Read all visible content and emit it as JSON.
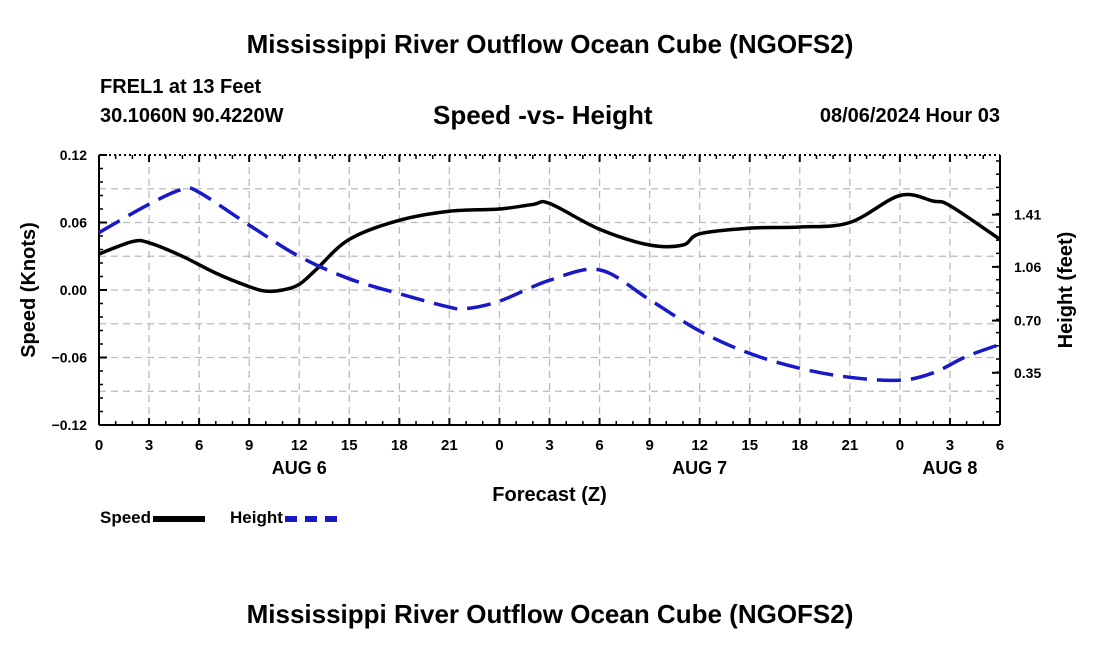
{
  "page": {
    "title": "Mississippi River Outflow Ocean Cube (NGOFS2)",
    "footer_title": "Mississippi River Outflow Ocean Cube (NGOFS2)"
  },
  "header": {
    "station": "FREL1 at 13 Feet",
    "coords": "30.1060N  90.4220W",
    "date": "08/06/2024 Hour 03"
  },
  "legend": {
    "speed": "Speed",
    "height": "Height"
  },
  "colors": {
    "speed": "#000000",
    "height": "#1919c8",
    "grid": "#bbbbbb"
  },
  "chart_data": {
    "type": "line",
    "title": "Speed -vs- Height",
    "xlabel": "Forecast (Z)",
    "ylabel_left": "Speed (Knots)",
    "ylabel_right": "Height (feet)",
    "x_range": [
      0,
      54
    ],
    "x_ticks": [
      0,
      3,
      6,
      9,
      12,
      15,
      18,
      21,
      24,
      27,
      30,
      33,
      36,
      39,
      42,
      45,
      48,
      51,
      54
    ],
    "x_tick_labels": [
      "0",
      "3",
      "6",
      "9",
      "12",
      "15",
      "18",
      "21",
      "0",
      "3",
      "6",
      "9",
      "12",
      "15",
      "18",
      "21",
      "0",
      "3",
      "6"
    ],
    "date_labels": [
      {
        "x": 12,
        "text": "AUG 6"
      },
      {
        "x": 36,
        "text": "AUG 7"
      },
      {
        "x": 51,
        "text": "AUG 8"
      }
    ],
    "y_left": {
      "range": [
        -0.12,
        0.12
      ],
      "ticks": [
        -0.12,
        -0.06,
        0.0,
        0.06,
        0.12
      ],
      "labels": [
        "−0.12",
        "−0.06",
        "0.00",
        "0.06",
        "0.12"
      ]
    },
    "y_right": {
      "range": [
        0.0,
        1.81
      ],
      "ticks": [
        0.35,
        0.7,
        1.06,
        1.41
      ],
      "labels": [
        "0.35",
        "0.70",
        "1.06",
        "1.41"
      ]
    },
    "grid": true,
    "series": [
      {
        "name": "Speed",
        "axis": "left",
        "style": "solid",
        "x": [
          0,
          2,
          3,
          5,
          7,
          9,
          10,
          11,
          12,
          13,
          15,
          18,
          21,
          24,
          26,
          27,
          30,
          33,
          35,
          36,
          39,
          42,
          45,
          48,
          50,
          51,
          54
        ],
        "values": [
          0.032,
          0.043,
          0.042,
          0.03,
          0.015,
          0.003,
          -0.001,
          0.0,
          0.005,
          0.018,
          0.045,
          0.062,
          0.07,
          0.072,
          0.076,
          0.077,
          0.054,
          0.04,
          0.04,
          0.05,
          0.055,
          0.056,
          0.06,
          0.084,
          0.079,
          0.075,
          0.045
        ]
      },
      {
        "name": "Height",
        "axis": "right",
        "style": "dashed",
        "x": [
          0,
          3,
          5,
          6,
          9,
          12,
          15,
          18,
          21,
          22,
          24,
          27,
          30,
          33,
          36,
          39,
          42,
          45,
          48,
          50,
          52,
          54
        ],
        "values": [
          1.29,
          1.48,
          1.58,
          1.56,
          1.34,
          1.13,
          0.98,
          0.88,
          0.79,
          0.78,
          0.83,
          0.97,
          1.04,
          0.84,
          0.63,
          0.48,
          0.38,
          0.32,
          0.3,
          0.35,
          0.46,
          0.54
        ]
      }
    ]
  }
}
